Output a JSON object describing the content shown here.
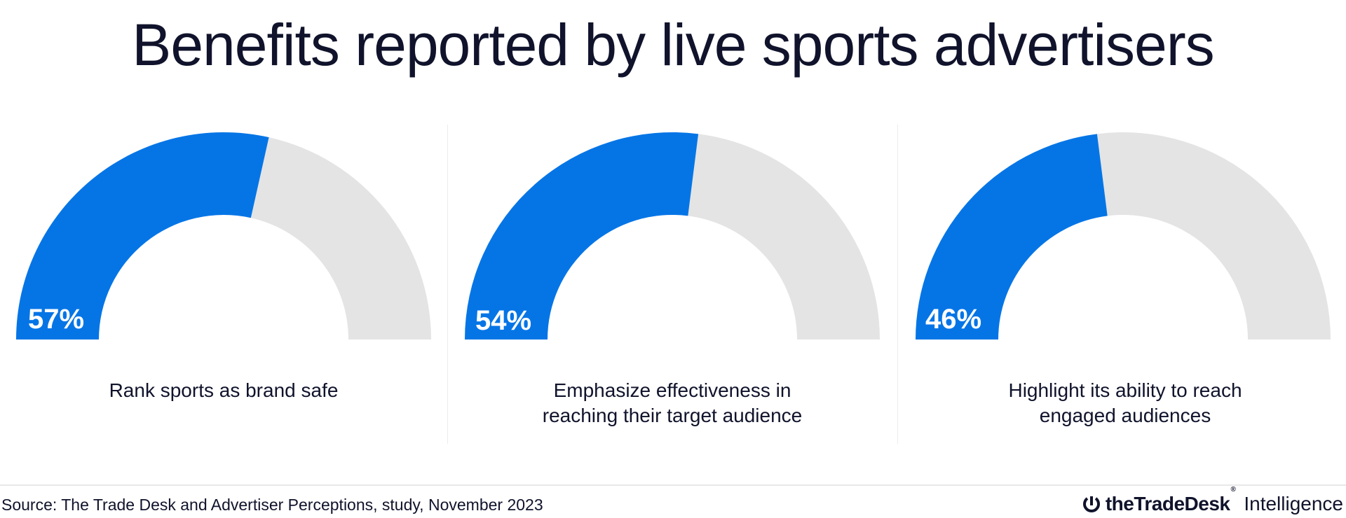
{
  "title": "Benefits reported by live sports advertisers",
  "colors": {
    "fill": "#0575e6",
    "track": "#e4e4e4",
    "text": "#10132b"
  },
  "chart_data": {
    "type": "gauge",
    "title": "Benefits reported by live sports advertisers",
    "unit": "%",
    "range": [
      0,
      100
    ],
    "gauges": [
      {
        "label": "Rank sports as brand safe",
        "value": 57,
        "value_label": "57%"
      },
      {
        "label": "Emphasize effectiveness in reaching their target audience",
        "value": 54,
        "value_label": "54%"
      },
      {
        "label": "Highlight its ability to reach engaged audiences",
        "value": 46,
        "value_label": "46%"
      }
    ]
  },
  "footer": {
    "source": "Source: The Trade Desk and Advertiser Perceptions, study, November 2023",
    "logo_brand": "theTradeDesk",
    "logo_reg": "®",
    "logo_suffix": "Intelligence",
    "logo_icon": "trade-desk-logo-icon"
  }
}
